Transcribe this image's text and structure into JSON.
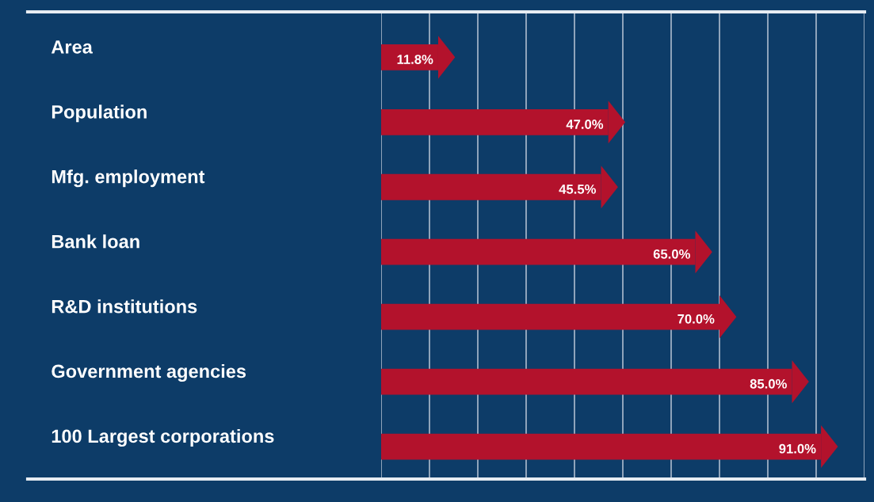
{
  "chart_data": {
    "type": "bar",
    "orientation": "horizontal",
    "categories": [
      "Area",
      "Population",
      "Mfg. employment",
      "Bank loan",
      "R&D institutions",
      "Government agencies",
      "100 Largest corporations"
    ],
    "values": [
      11.8,
      47.0,
      45.5,
      65.0,
      70.0,
      85.0,
      91.0
    ],
    "value_labels": [
      "11.8%",
      "47.0%",
      "45.5%",
      "65.0%",
      "70.0%",
      "85.0%",
      "91.0%"
    ],
    "color": "#b3122c",
    "xlim": [
      0,
      100
    ],
    "xticks": [
      {
        "value": 0,
        "label": null
      },
      {
        "value": 10,
        "label": null
      },
      {
        "value": 20,
        "label": null
      },
      {
        "value": 30,
        "label": null
      },
      {
        "value": 40,
        "label": null
      },
      {
        "value": 50,
        "label": null
      },
      {
        "value": 60,
        "label": null
      },
      {
        "value": 70,
        "label": null
      },
      {
        "value": 80,
        "label": null
      },
      {
        "value": 90,
        "label": null
      },
      {
        "value": 100,
        "label": null
      }
    ],
    "grid": "x",
    "tick_labels": "y"
  }
}
